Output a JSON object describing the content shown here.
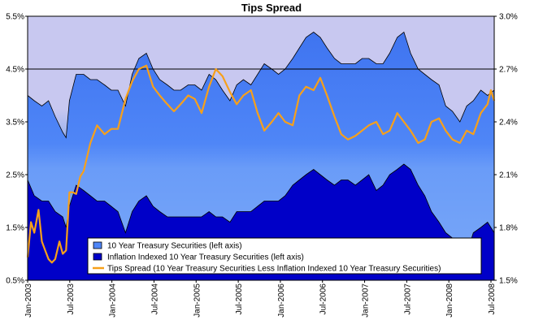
{
  "chart_data": {
    "type": "area",
    "title": "Tips Spread",
    "xlabel": "",
    "ylabel": "",
    "ylabel_right": "",
    "x_tick_labels": [
      "Jan-2003",
      "Jul-2003",
      "Jan-2004",
      "Jul-2004",
      "Jan-2005",
      "Jul-2005",
      "Jan-2006",
      "Jul-2006",
      "Jan-2007",
      "Jul-2007",
      "Jan-2008",
      "Jul-2008"
    ],
    "x_range": [
      2003.0,
      2008.58
    ],
    "y_left_ticks": [
      "0.5%",
      "1.5%",
      "2.5%",
      "3.5%",
      "4.5%",
      "5.5%"
    ],
    "y_left_range": [
      0.5,
      5.5
    ],
    "y_right_ticks": [
      "1.5%",
      "1.8%",
      "2.1%",
      "2.4%",
      "2.7%",
      "3.0%"
    ],
    "y_right_range": [
      1.5,
      3.0
    ],
    "reference_line": {
      "axis": "left",
      "value": 4.5
    },
    "legend_position": "bottom-center",
    "series": [
      {
        "name": "10 Year Treasury Securities (left axis)",
        "axis": "left",
        "color": "#4f86f7",
        "x": [
          2003.0,
          2003.08,
          2003.17,
          2003.25,
          2003.33,
          2003.42,
          2003.46,
          2003.5,
          2003.58,
          2003.67,
          2003.75,
          2003.83,
          2003.92,
          2004.0,
          2004.08,
          2004.17,
          2004.25,
          2004.33,
          2004.42,
          2004.5,
          2004.58,
          2004.67,
          2004.75,
          2004.83,
          2004.92,
          2005.0,
          2005.08,
          2005.17,
          2005.25,
          2005.33,
          2005.42,
          2005.5,
          2005.58,
          2005.67,
          2005.75,
          2005.83,
          2005.92,
          2006.0,
          2006.08,
          2006.17,
          2006.25,
          2006.33,
          2006.42,
          2006.5,
          2006.58,
          2006.67,
          2006.75,
          2006.83,
          2006.92,
          2007.0,
          2007.08,
          2007.17,
          2007.25,
          2007.33,
          2007.42,
          2007.5,
          2007.58,
          2007.67,
          2007.75,
          2007.83,
          2007.92,
          2008.0,
          2008.08,
          2008.17,
          2008.25,
          2008.33,
          2008.42,
          2008.5,
          2008.58
        ],
        "values": [
          4.0,
          3.9,
          3.8,
          3.9,
          3.6,
          3.3,
          3.2,
          3.9,
          4.4,
          4.4,
          4.3,
          4.3,
          4.2,
          4.1,
          4.1,
          3.8,
          4.4,
          4.7,
          4.8,
          4.5,
          4.3,
          4.2,
          4.1,
          4.1,
          4.2,
          4.2,
          4.1,
          4.4,
          4.3,
          4.1,
          3.9,
          4.2,
          4.3,
          4.2,
          4.4,
          4.6,
          4.5,
          4.4,
          4.5,
          4.7,
          4.9,
          5.1,
          5.2,
          5.1,
          4.9,
          4.7,
          4.6,
          4.6,
          4.6,
          4.7,
          4.7,
          4.6,
          4.6,
          4.8,
          5.1,
          5.2,
          4.8,
          4.5,
          4.4,
          4.3,
          4.2,
          3.8,
          3.7,
          3.5,
          3.8,
          3.9,
          4.1,
          4.0,
          4.1
        ]
      },
      {
        "name": "Inflation Indexed 10 Year Treasury Securities (left axis)",
        "axis": "left",
        "color": "#0000c8",
        "x": [
          2003.0,
          2003.08,
          2003.17,
          2003.25,
          2003.33,
          2003.42,
          2003.46,
          2003.5,
          2003.58,
          2003.67,
          2003.75,
          2003.83,
          2003.92,
          2004.0,
          2004.08,
          2004.17,
          2004.25,
          2004.33,
          2004.42,
          2004.5,
          2004.58,
          2004.67,
          2004.75,
          2004.83,
          2004.92,
          2005.0,
          2005.08,
          2005.17,
          2005.25,
          2005.33,
          2005.42,
          2005.5,
          2005.58,
          2005.67,
          2005.75,
          2005.83,
          2005.92,
          2006.0,
          2006.08,
          2006.17,
          2006.25,
          2006.33,
          2006.42,
          2006.5,
          2006.58,
          2006.67,
          2006.75,
          2006.83,
          2006.92,
          2007.0,
          2007.08,
          2007.17,
          2007.25,
          2007.33,
          2007.42,
          2007.5,
          2007.58,
          2007.67,
          2007.75,
          2007.83,
          2007.92,
          2008.0,
          2008.08,
          2008.17,
          2008.25,
          2008.33,
          2008.42,
          2008.5,
          2008.58
        ],
        "values": [
          2.4,
          2.1,
          2.0,
          2.0,
          1.8,
          1.7,
          1.5,
          1.9,
          2.3,
          2.2,
          2.1,
          2.0,
          2.0,
          1.9,
          1.8,
          1.4,
          1.8,
          2.0,
          2.1,
          1.9,
          1.8,
          1.7,
          1.7,
          1.7,
          1.7,
          1.7,
          1.7,
          1.8,
          1.7,
          1.7,
          1.6,
          1.8,
          1.8,
          1.8,
          1.9,
          2.0,
          2.0,
          2.0,
          2.1,
          2.3,
          2.4,
          2.5,
          2.6,
          2.5,
          2.4,
          2.3,
          2.4,
          2.4,
          2.3,
          2.4,
          2.5,
          2.2,
          2.3,
          2.5,
          2.6,
          2.7,
          2.6,
          2.3,
          2.1,
          1.8,
          1.6,
          1.4,
          1.3,
          1.1,
          1.0,
          1.4,
          1.5,
          1.6,
          1.4
        ]
      },
      {
        "name": "Tips Spread (10 Year Treasury Securities Less Inflation Indexed 10 Year Treasury Securities)",
        "axis": "right",
        "color": "#f7a01a",
        "x": [
          2003.0,
          2003.04,
          2003.08,
          2003.13,
          2003.17,
          2003.21,
          2003.25,
          2003.29,
          2003.33,
          2003.38,
          2003.42,
          2003.46,
          2003.5,
          2003.54,
          2003.58,
          2003.63,
          2003.67,
          2003.75,
          2003.83,
          2003.92,
          2004.0,
          2004.08,
          2004.17,
          2004.25,
          2004.33,
          2004.42,
          2004.5,
          2004.58,
          2004.67,
          2004.75,
          2004.83,
          2004.92,
          2005.0,
          2005.08,
          2005.17,
          2005.25,
          2005.33,
          2005.42,
          2005.5,
          2005.58,
          2005.67,
          2005.75,
          2005.83,
          2005.92,
          2006.0,
          2006.08,
          2006.17,
          2006.25,
          2006.33,
          2006.42,
          2006.5,
          2006.58,
          2006.67,
          2006.75,
          2006.83,
          2006.92,
          2007.0,
          2007.08,
          2007.17,
          2007.25,
          2007.33,
          2007.42,
          2007.5,
          2007.58,
          2007.67,
          2007.75,
          2007.83,
          2007.92,
          2008.0,
          2008.08,
          2008.17,
          2008.25,
          2008.33,
          2008.42,
          2008.5,
          2008.54,
          2008.58
        ],
        "values": [
          1.63,
          1.83,
          1.77,
          1.9,
          1.72,
          1.67,
          1.62,
          1.6,
          1.62,
          1.72,
          1.65,
          1.67,
          2.0,
          2.0,
          1.99,
          2.09,
          2.12,
          2.28,
          2.38,
          2.33,
          2.36,
          2.36,
          2.53,
          2.63,
          2.7,
          2.72,
          2.6,
          2.55,
          2.5,
          2.46,
          2.5,
          2.55,
          2.53,
          2.45,
          2.6,
          2.7,
          2.66,
          2.57,
          2.5,
          2.55,
          2.58,
          2.45,
          2.35,
          2.4,
          2.45,
          2.4,
          2.38,
          2.55,
          2.6,
          2.58,
          2.65,
          2.55,
          2.43,
          2.33,
          2.3,
          2.32,
          2.35,
          2.38,
          2.4,
          2.33,
          2.35,
          2.45,
          2.4,
          2.35,
          2.28,
          2.3,
          2.4,
          2.42,
          2.35,
          2.3,
          2.28,
          2.35,
          2.33,
          2.45,
          2.5,
          2.58,
          2.52
        ]
      }
    ]
  }
}
